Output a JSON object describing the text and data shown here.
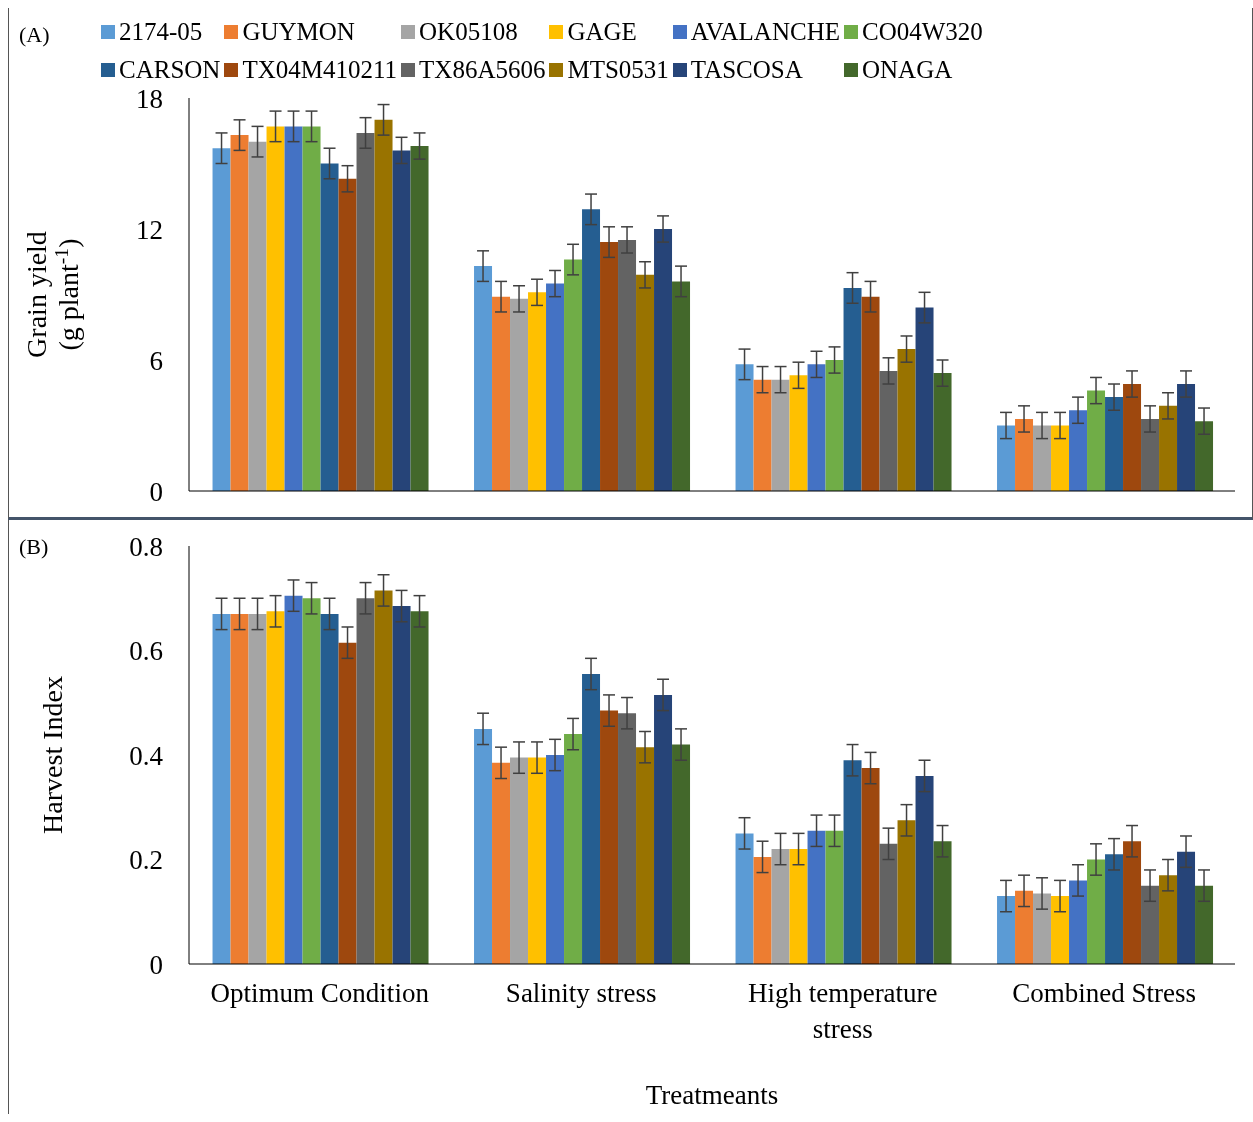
{
  "chart_data": [
    {
      "type": "bar",
      "annotations": [
        "(A)"
      ],
      "ylabel": "Grain yield\n(g plant$^{-1}$)",
      "categories": [
        null,
        null,
        null,
        null
      ],
      "ylim": [
        0,
        18
      ],
      "yticks": [
        0,
        6,
        12,
        18
      ],
      "grid": false,
      "legend": "top",
      "tick_labels": "y",
      "series": [
        {
          "name": "2174-05",
          "color": "#5b9bd5",
          "values": [
            15.7,
            10.3,
            5.8,
            3.0
          ],
          "errors": [
            0.7,
            0.7,
            0.7,
            0.6
          ]
        },
        {
          "name": "GUYMON",
          "color": "#ed7d31",
          "values": [
            16.3,
            8.9,
            5.1,
            3.3
          ],
          "errors": [
            0.7,
            0.7,
            0.6,
            0.6
          ]
        },
        {
          "name": "OK05108",
          "color": "#a5a5a5",
          "values": [
            16.0,
            8.8,
            5.1,
            3.0
          ],
          "errors": [
            0.7,
            0.6,
            0.6,
            0.6
          ]
        },
        {
          "name": "GAGE",
          "color": "#ffc000",
          "values": [
            16.7,
            9.1,
            5.3,
            3.0
          ],
          "errors": [
            0.7,
            0.6,
            0.6,
            0.6
          ]
        },
        {
          "name": "AVALANCHE",
          "color": "#4472c4",
          "values": [
            16.7,
            9.5,
            5.8,
            3.7
          ],
          "errors": [
            0.7,
            0.6,
            0.6,
            0.6
          ]
        },
        {
          "name": "CO04W320",
          "color": "#70ad47",
          "values": [
            16.7,
            10.6,
            6.0,
            4.6
          ],
          "errors": [
            0.7,
            0.7,
            0.6,
            0.6
          ]
        },
        {
          "name": "CARSON",
          "color": "#255e91",
          "values": [
            15.0,
            12.9,
            9.3,
            4.3
          ],
          "errors": [
            0.7,
            0.7,
            0.7,
            0.6
          ]
        },
        {
          "name": "TX04M410211",
          "color": "#9e480e",
          "values": [
            14.3,
            11.4,
            8.9,
            4.9
          ],
          "errors": [
            0.6,
            0.7,
            0.7,
            0.6
          ]
        },
        {
          "name": "TX86A5606",
          "color": "#636363",
          "values": [
            16.4,
            11.5,
            5.5,
            3.3
          ],
          "errors": [
            0.7,
            0.6,
            0.6,
            0.6
          ]
        },
        {
          "name": "MTS0531",
          "color": "#997300",
          "values": [
            17.0,
            9.9,
            6.5,
            3.9
          ],
          "errors": [
            0.7,
            0.6,
            0.6,
            0.6
          ]
        },
        {
          "name": "TASCOSA",
          "color": "#264478",
          "values": [
            15.6,
            12.0,
            8.4,
            4.9
          ],
          "errors": [
            0.6,
            0.6,
            0.7,
            0.6
          ]
        },
        {
          "name": "ONAGA",
          "color": "#43682b",
          "values": [
            15.8,
            9.6,
            5.4,
            3.2
          ],
          "errors": [
            0.6,
            0.7,
            0.6,
            0.6
          ]
        }
      ]
    },
    {
      "type": "bar",
      "annotations": [
        "(B)"
      ],
      "ylabel": "Harvest Index",
      "xlabel": "Treatmeants",
      "categories": [
        "Optimum Condition",
        "Salinity stress",
        "High temperature stress",
        "Combined Stress"
      ],
      "ylim": [
        0,
        0.8
      ],
      "yticks": [
        0,
        0.2,
        0.4,
        0.6,
        0.8
      ],
      "grid": false,
      "series": [
        {
          "color": "#5b9bd5",
          "values": [
            0.67,
            0.45,
            0.25,
            0.13
          ],
          "errors": [
            0.03,
            0.03,
            0.03,
            0.03
          ]
        },
        {
          "color": "#ed7d31",
          "values": [
            0.67,
            0.385,
            0.205,
            0.14
          ],
          "errors": [
            0.03,
            0.03,
            0.03,
            0.03
          ]
        },
        {
          "color": "#a5a5a5",
          "values": [
            0.67,
            0.395,
            0.22,
            0.135
          ],
          "errors": [
            0.03,
            0.03,
            0.03,
            0.03
          ]
        },
        {
          "color": "#ffc000",
          "values": [
            0.675,
            0.395,
            0.22,
            0.13
          ],
          "errors": [
            0.03,
            0.03,
            0.03,
            0.03
          ]
        },
        {
          "color": "#4472c4",
          "values": [
            0.705,
            0.4,
            0.255,
            0.16
          ],
          "errors": [
            0.03,
            0.03,
            0.03,
            0.03
          ]
        },
        {
          "color": "#70ad47",
          "values": [
            0.7,
            0.44,
            0.255,
            0.2
          ],
          "errors": [
            0.03,
            0.03,
            0.03,
            0.03
          ]
        },
        {
          "color": "#255e91",
          "values": [
            0.67,
            0.555,
            0.39,
            0.21
          ],
          "errors": [
            0.03,
            0.03,
            0.03,
            0.03
          ]
        },
        {
          "color": "#9e480e",
          "values": [
            0.615,
            0.485,
            0.375,
            0.235
          ],
          "errors": [
            0.03,
            0.03,
            0.03,
            0.03
          ]
        },
        {
          "color": "#636363",
          "values": [
            0.7,
            0.48,
            0.23,
            0.15
          ],
          "errors": [
            0.03,
            0.03,
            0.03,
            0.03
          ]
        },
        {
          "color": "#997300",
          "values": [
            0.715,
            0.415,
            0.275,
            0.17
          ],
          "errors": [
            0.03,
            0.03,
            0.03,
            0.03
          ]
        },
        {
          "color": "#264478",
          "values": [
            0.685,
            0.515,
            0.36,
            0.215
          ],
          "errors": [
            0.03,
            0.03,
            0.03,
            0.03
          ]
        },
        {
          "color": "#43682b",
          "values": [
            0.675,
            0.42,
            0.235,
            0.15
          ],
          "errors": [
            0.03,
            0.03,
            0.03,
            0.03
          ]
        }
      ]
    }
  ]
}
